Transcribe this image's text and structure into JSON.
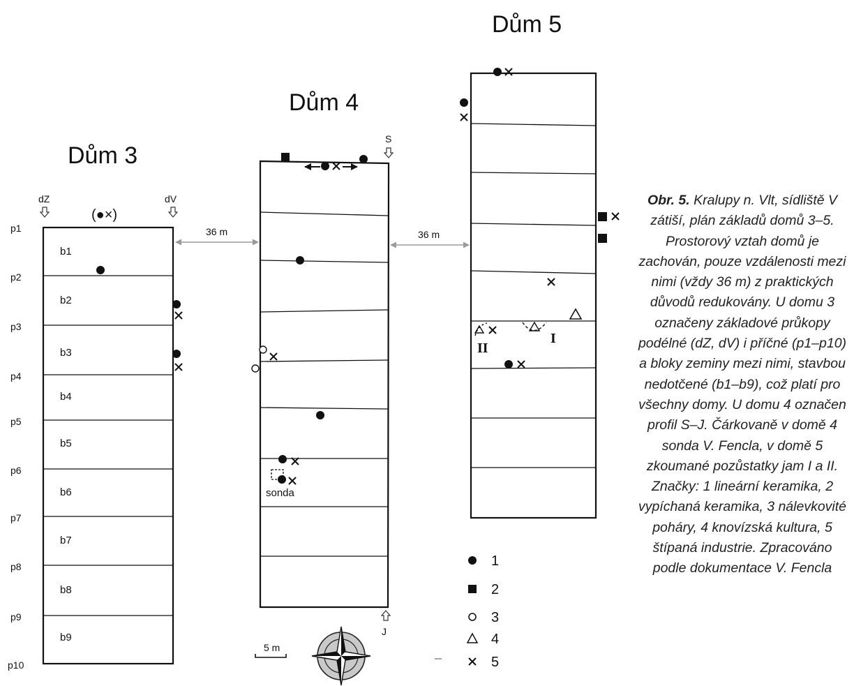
{
  "houses": {
    "h3": {
      "title": "Dům 3",
      "blocks": [
        "b1",
        "b2",
        "b3",
        "b4",
        "b5",
        "b6",
        "b7",
        "b8",
        "b9"
      ]
    },
    "h4": {
      "title": "Dům 4",
      "profile_start": "S",
      "profile_end": "J",
      "probe_label": "sonda"
    },
    "h5": {
      "title": "Dům 5",
      "pit1": "I",
      "pit2": "II"
    }
  },
  "trenches": {
    "longitudinal_left": "dZ",
    "longitudinal_right": "dV",
    "transverse": [
      "p1",
      "p2",
      "p3",
      "p4",
      "p5",
      "p6",
      "p7",
      "p8",
      "p9",
      "p10"
    ]
  },
  "find_note_h3": "(●×)",
  "distances": {
    "h3_h4": "36 m",
    "h4_h5": "36 m"
  },
  "scale_bar": "5 m",
  "legend": [
    {
      "symbol": "filled-circle",
      "label": "1"
    },
    {
      "symbol": "filled-square",
      "label": "2"
    },
    {
      "symbol": "open-circle",
      "label": "3"
    },
    {
      "symbol": "open-triangle",
      "label": "4"
    },
    {
      "symbol": "cross",
      "label": "5"
    }
  ],
  "caption": {
    "label": "Obr. 5.",
    "text": "Kralupy n. Vlt, sídliště V zátiší, plán základů domů 3–5. Prostorový vztah domů je zachován, pouze vzdálenosti mezi nimi (vždy 36 m) z praktických důvodů redukovány. U domu 3 označeny základové průkopy podélné (dZ, dV) i příčné (p1–p10) a bloky zeminy mezi nimi, stavbou nedotčené (b1–b9), což platí pro všechny domy. U domu 4 označen profil S–J. Čárkovaně v domě 4 sonda V. Fencla, v domě 5 zkoumané pozůstatky jam I a II. Značky: 1 lineární keramika, 2 vypíchaná keramika, 3 nálevkovité poháry, 4 knovízská kultura, 5 štípaná industrie. Zpracováno podle dokumentace V. Fencla"
  }
}
